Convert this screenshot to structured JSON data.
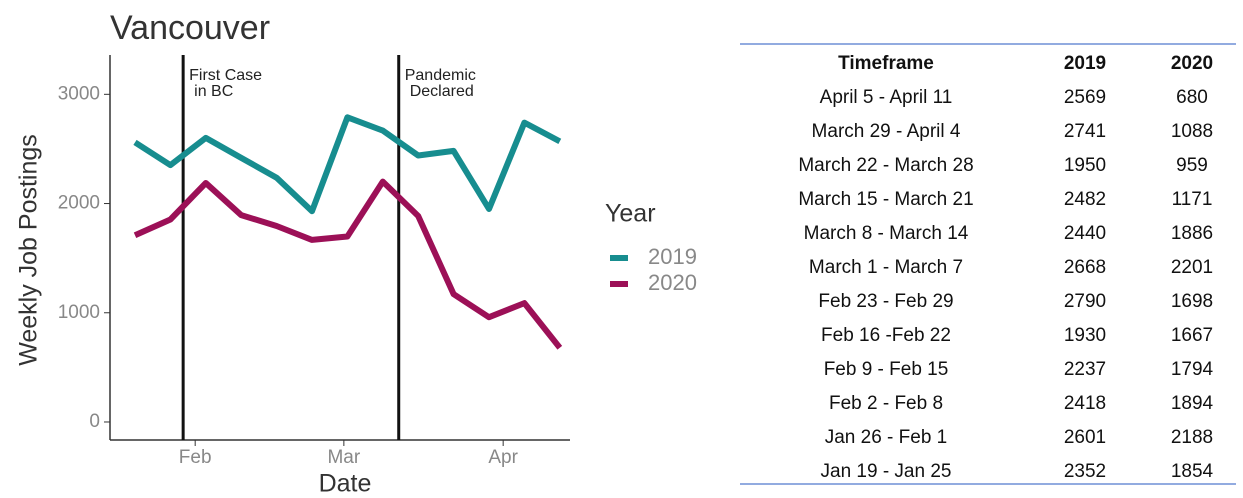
{
  "chart_data": {
    "type": "line",
    "title": "Vancouver",
    "xlabel": "Date",
    "ylabel": "Weekly Job Postings",
    "categories": [
      null,
      null,
      null,
      null,
      null,
      null,
      null,
      null,
      null,
      null,
      null,
      null,
      null
    ],
    "xticks": [
      {
        "value": 1.7,
        "label": "Feb"
      },
      {
        "value": 5.9,
        "label": "Mar"
      },
      {
        "value": 10.4,
        "label": "Apr"
      }
    ],
    "ylim": [
      -165,
      3360
    ],
    "yticks": [
      0,
      1000,
      2000,
      3000
    ],
    "grid": false,
    "legend_title": "Year",
    "legend": "right",
    "series": [
      {
        "name": "2019",
        "color": "#178d8f",
        "values": [
          2560,
          2352,
          2601,
          2418,
          2237,
          1930,
          2790,
          2668,
          2440,
          2482,
          1950,
          2741,
          2569
        ]
      },
      {
        "name": "2020",
        "color": "#9c1057",
        "values": [
          1710,
          1854,
          2188,
          1894,
          1794,
          1667,
          1698,
          2201,
          1886,
          1171,
          959,
          1088,
          680
        ]
      }
    ],
    "annotations": [
      {
        "x": 1.36,
        "text": [
          "First Case",
          "in BC"
        ]
      },
      {
        "x": 7.45,
        "text": [
          "Pandemic",
          "Declared"
        ]
      }
    ]
  },
  "table": {
    "header": "Timeframe",
    "timeframes": [
      "April 5 - April 11",
      "March 29 - April 4",
      "March 22 - March 28",
      "March 15 - March 21",
      "March 8 - March 14",
      "March 1 - March 7",
      "Feb 23 - Feb 29",
      "Feb 16 -Feb 22",
      "Feb 9 - Feb 15",
      "Feb 2 - Feb 8",
      "Jan 26 - Feb 1",
      "Jan 19 - Jan 25"
    ]
  }
}
